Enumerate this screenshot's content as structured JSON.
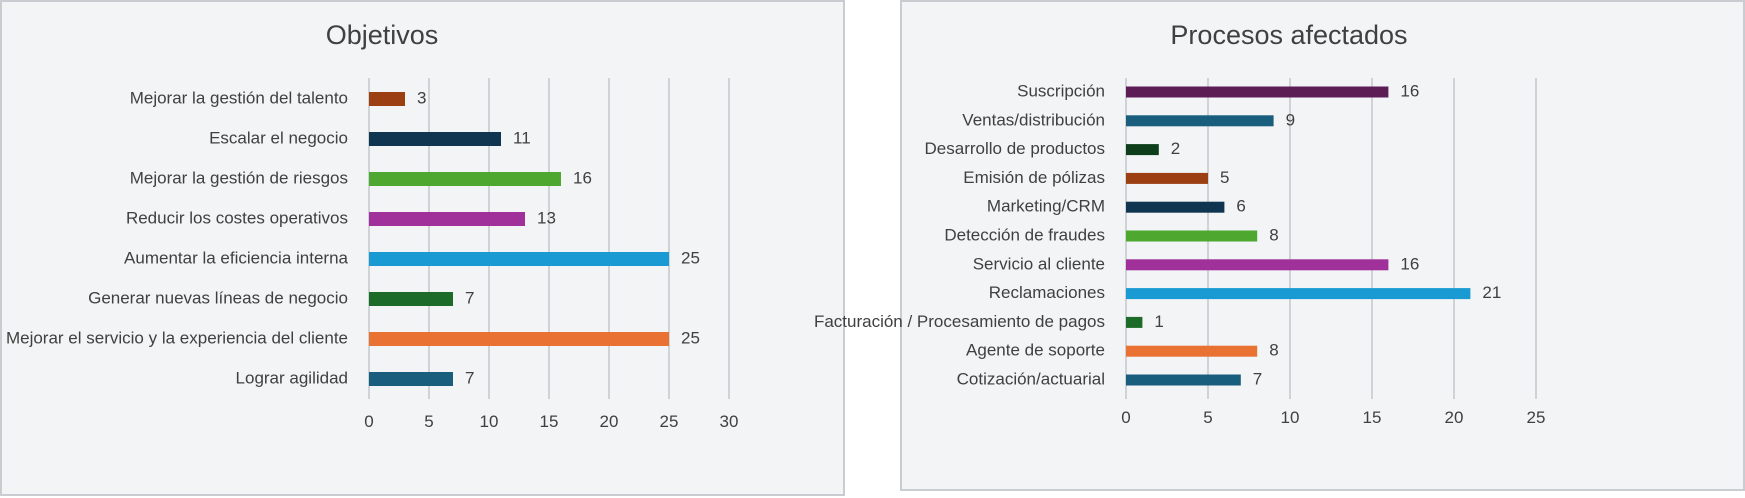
{
  "chart_data": [
    {
      "type": "bar",
      "orientation": "horizontal",
      "title": "Objetivos",
      "categories": [
        "Mejorar la gestión del talento",
        "Escalar el negocio",
        "Mejorar la gestión de riesgos",
        "Reducir los costes operativos",
        "Aumentar la eficiencia interna",
        "Generar nuevas líneas de negocio",
        "Mejorar el servicio y la experiencia del cliente",
        "Lograr agilidad"
      ],
      "values": [
        3,
        11,
        16,
        13,
        25,
        7,
        25,
        7
      ],
      "colors": [
        "#9c3f12",
        "#0f3550",
        "#4ea72e",
        "#a0309a",
        "#1a9ad2",
        "#1d6b28",
        "#e97132",
        "#195e7c"
      ],
      "xlim": [
        0,
        30
      ],
      "xticks": [
        0,
        5,
        10,
        15,
        20,
        25,
        30
      ],
      "grid": true,
      "xlabel": "",
      "ylabel": ""
    },
    {
      "type": "bar",
      "orientation": "horizontal",
      "title": "Procesos afectados",
      "categories": [
        "Suscripción",
        "Ventas/distribución",
        "Desarrollo de productos",
        "Emisión de pólizas",
        "Marketing/CRM",
        "Detección de fraudes",
        "Servicio al cliente",
        "Reclamaciones",
        "Facturación / Procesamiento de pagos",
        "Agente de soporte",
        "Cotización/actuarial"
      ],
      "values": [
        16,
        9,
        2,
        5,
        6,
        8,
        16,
        21,
        1,
        8,
        7
      ],
      "colors": [
        "#5c1d55",
        "#195e7c",
        "#0e3d1b",
        "#9c3f12",
        "#0f3550",
        "#4ea72e",
        "#a0309a",
        "#1a9ad2",
        "#1d6b28",
        "#e97132",
        "#195e7c"
      ],
      "xlim": [
        0,
        25
      ],
      "xticks": [
        0,
        5,
        10,
        15,
        20,
        25
      ],
      "grid": true,
      "xlabel": "",
      "ylabel": ""
    }
  ]
}
